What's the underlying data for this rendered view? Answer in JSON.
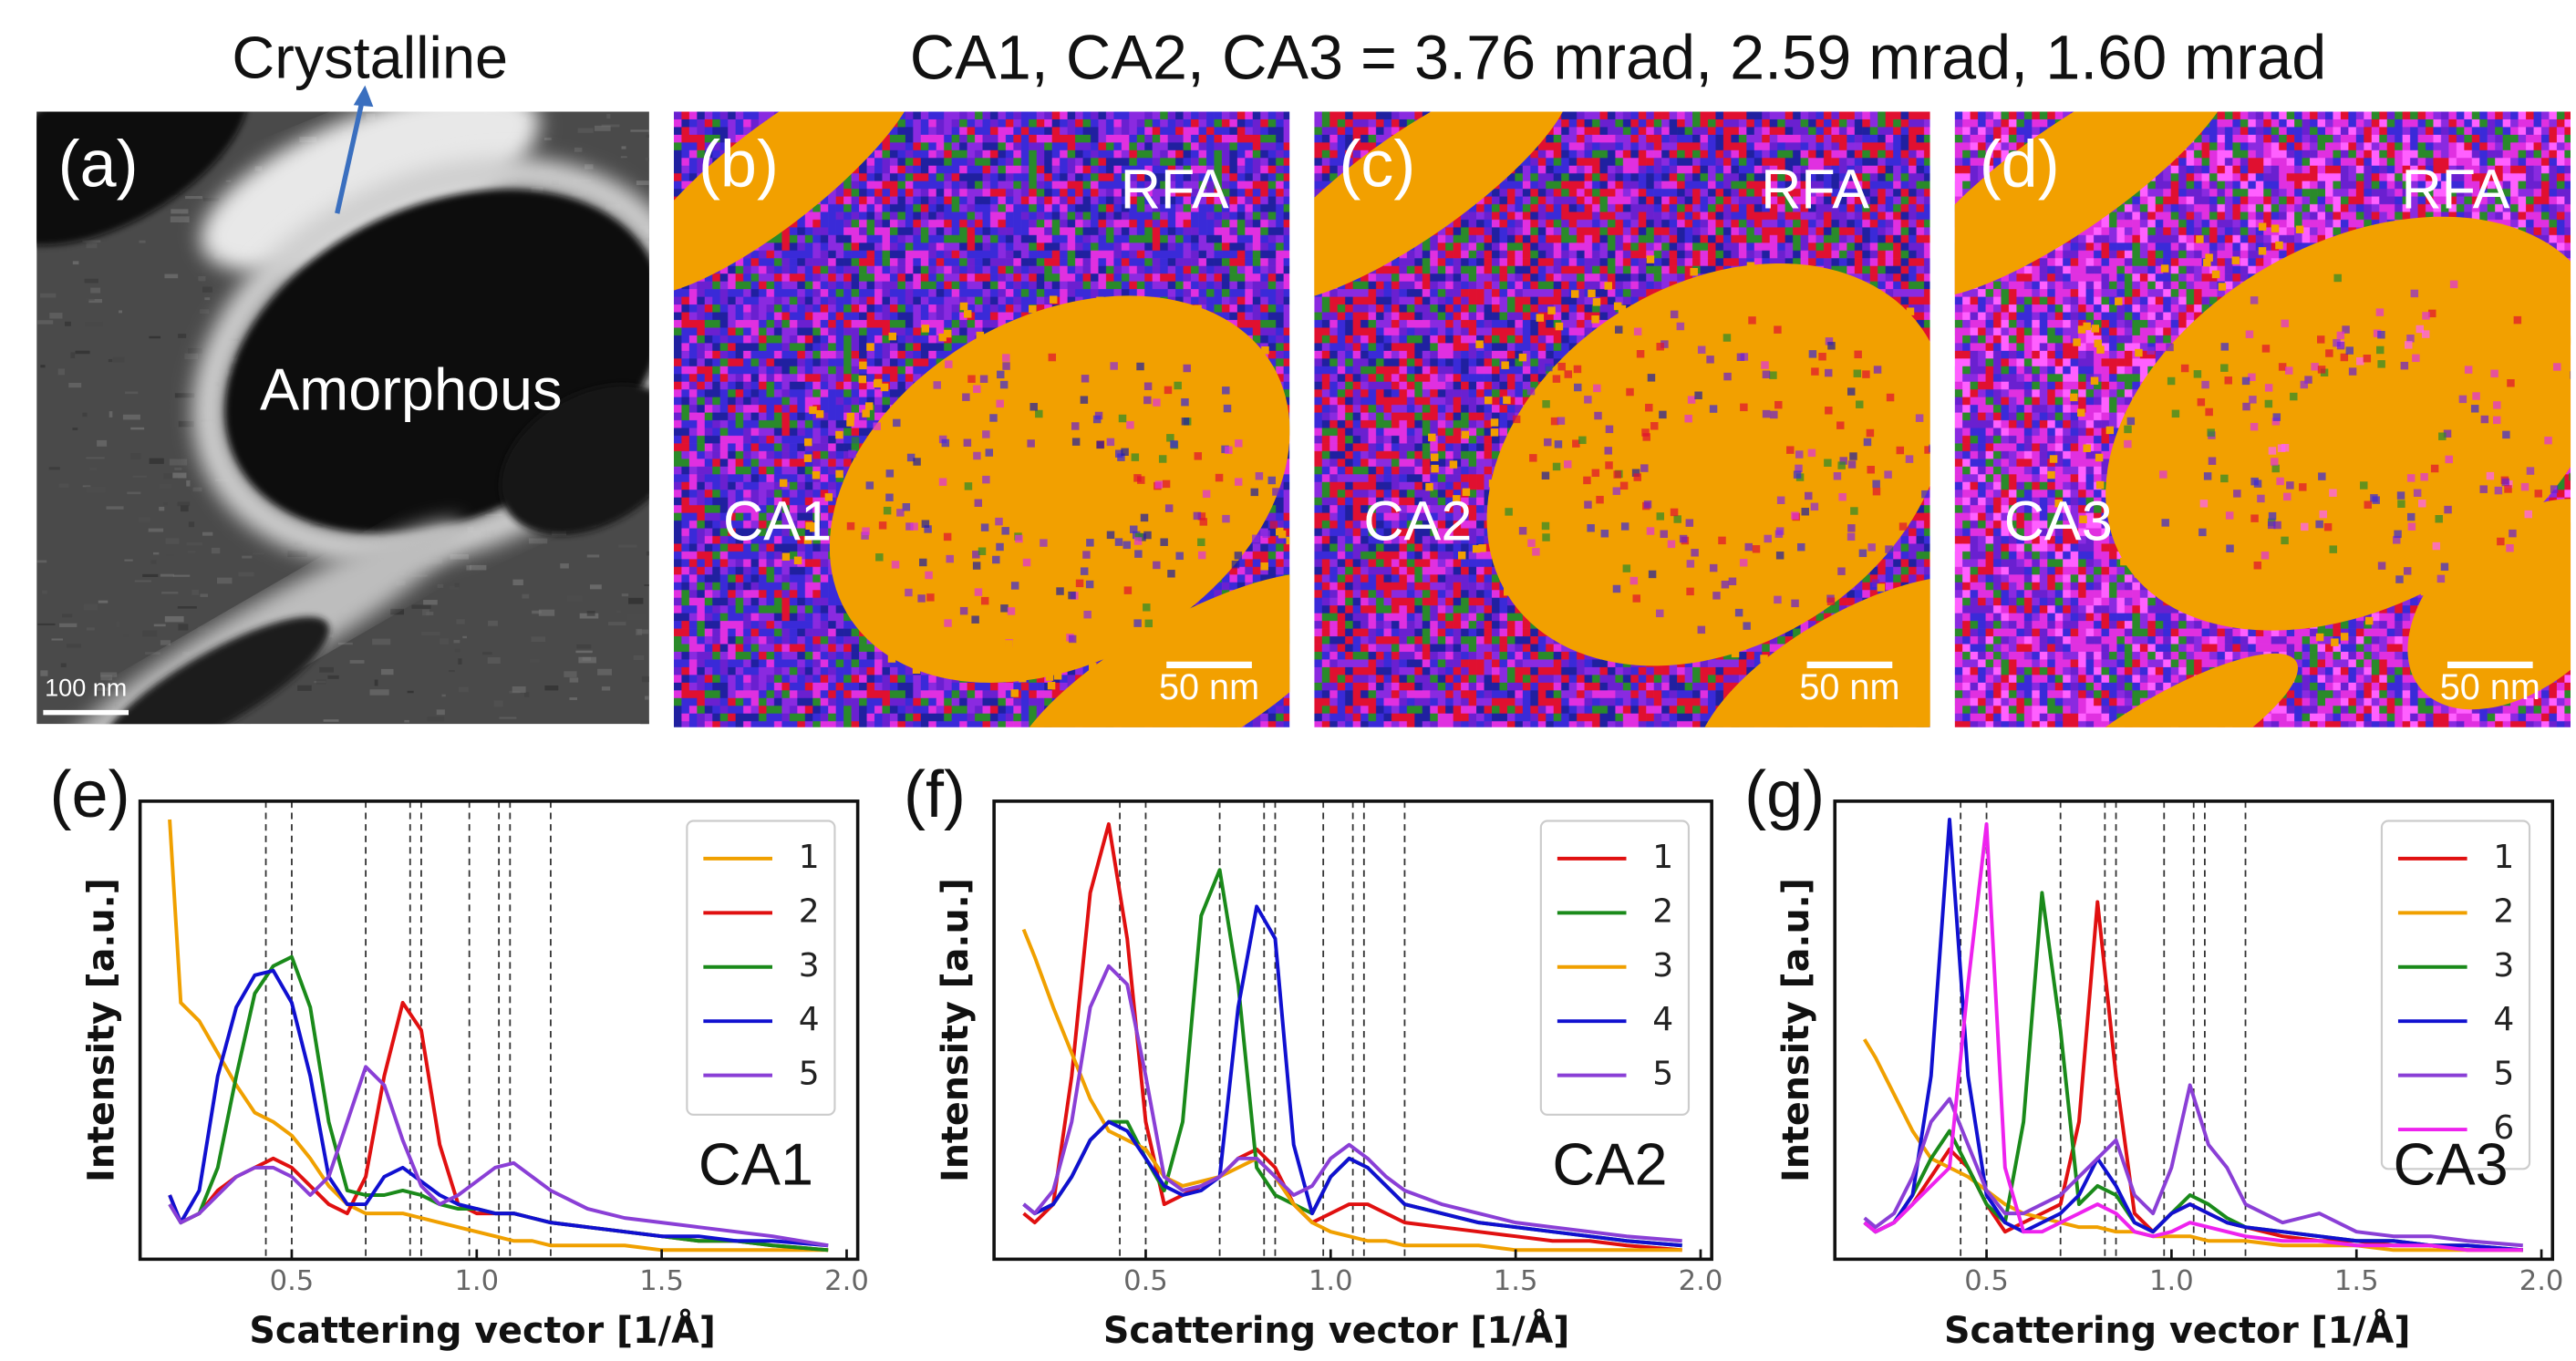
{
  "header": {
    "title": "CA1, CA2, CA3 = 3.76 mrad, 2.59 mrad, 1.60 mrad"
  },
  "panels": [
    {
      "label": "(a)",
      "callout": "Crystalline",
      "annotation": "Amorphous",
      "scale_bar": "100 nm"
    },
    {
      "label": "(b)",
      "corner_label": "RFA",
      "map_label": "CA1",
      "scale_bar": "50 nm"
    },
    {
      "label": "(c)",
      "corner_label": "RFA",
      "map_label": "CA2",
      "scale_bar": "50 nm"
    },
    {
      "label": "(d)",
      "corner_label": "RFA",
      "map_label": "CA3",
      "scale_bar": "50 nm"
    }
  ],
  "chart_data": [
    {
      "type": "line",
      "panel_label": "(e)",
      "annotation": "CA1",
      "x_label": "Scattering vector [1/Å]",
      "y_label": "Intensity [a.u.]",
      "xlim": [
        0.09,
        2.03
      ],
      "ylim": [
        0,
        1
      ],
      "xticks": [
        0.5,
        {
          "value": 1,
          "label": "1.0"
        },
        1.5,
        {
          "value": 2,
          "label": "2.0"
        }
      ],
      "reference_lines": [
        0.43,
        0.5,
        0.7,
        0.82,
        0.85,
        0.98,
        1.06,
        1.09,
        1.2
      ],
      "legend": "upper right",
      "x": [
        0.17,
        0.2,
        0.25,
        0.3,
        0.35,
        0.4,
        0.45,
        0.5,
        0.55,
        0.6,
        0.65,
        0.7,
        0.75,
        0.8,
        0.85,
        0.9,
        0.95,
        1.0,
        1.05,
        1.1,
        1.15,
        1.2,
        1.3,
        1.4,
        1.5,
        1.6,
        1.7,
        1.8,
        1.95
      ],
      "series": [
        {
          "name": "1",
          "color": "#f0a000",
          "values": [
            0.96,
            0.56,
            0.52,
            0.45,
            0.38,
            0.32,
            0.3,
            0.27,
            0.22,
            0.16,
            0.12,
            0.1,
            0.1,
            0.1,
            0.09,
            0.08,
            0.07,
            0.06,
            0.05,
            0.04,
            0.04,
            0.03,
            0.03,
            0.03,
            0.02,
            0.02,
            0.02,
            0.02,
            0.02
          ]
        },
        {
          "name": "2",
          "color": "#e01010",
          "values": [
            0.14,
            0.08,
            0.1,
            0.15,
            0.18,
            0.2,
            0.22,
            0.2,
            0.16,
            0.12,
            0.1,
            0.18,
            0.4,
            0.56,
            0.5,
            0.25,
            0.12,
            0.1,
            0.1,
            0.1,
            0.09,
            0.08,
            0.07,
            0.06,
            0.05,
            0.04,
            0.04,
            0.03,
            0.02
          ]
        },
        {
          "name": "3",
          "color": "#1a8a1a",
          "values": [
            0.12,
            0.08,
            0.1,
            0.2,
            0.4,
            0.58,
            0.64,
            0.66,
            0.55,
            0.3,
            0.15,
            0.14,
            0.14,
            0.15,
            0.14,
            0.12,
            0.11,
            0.11,
            0.1,
            0.1,
            0.09,
            0.08,
            0.07,
            0.06,
            0.05,
            0.04,
            0.04,
            0.03,
            0.02
          ]
        },
        {
          "name": "4",
          "color": "#1010d0",
          "values": [
            0.14,
            0.08,
            0.15,
            0.4,
            0.55,
            0.62,
            0.63,
            0.56,
            0.4,
            0.18,
            0.12,
            0.12,
            0.18,
            0.2,
            0.17,
            0.14,
            0.12,
            0.11,
            0.1,
            0.1,
            0.09,
            0.08,
            0.07,
            0.06,
            0.05,
            0.05,
            0.04,
            0.04,
            0.03
          ]
        },
        {
          "name": "5",
          "color": "#8a3fd6",
          "values": [
            0.12,
            0.08,
            0.1,
            0.14,
            0.18,
            0.2,
            0.2,
            0.18,
            0.14,
            0.18,
            0.3,
            0.42,
            0.38,
            0.26,
            0.16,
            0.12,
            0.14,
            0.17,
            0.2,
            0.21,
            0.18,
            0.15,
            0.11,
            0.09,
            0.08,
            0.07,
            0.06,
            0.05,
            0.03
          ]
        }
      ]
    },
    {
      "type": "line",
      "panel_label": "(f)",
      "annotation": "CA2",
      "x_label": "Scattering vector [1/Å]",
      "y_label": "Intensity [a.u.]",
      "xlim": [
        0.09,
        2.03
      ],
      "ylim": [
        0,
        1
      ],
      "xticks": [
        0.5,
        {
          "value": 1,
          "label": "1.0"
        },
        1.5,
        {
          "value": 2,
          "label": "2.0"
        }
      ],
      "reference_lines": [
        0.43,
        0.5,
        0.7,
        0.82,
        0.85,
        0.98,
        1.06,
        1.09,
        1.2
      ],
      "legend": "upper right",
      "x": [
        0.17,
        0.2,
        0.25,
        0.3,
        0.35,
        0.4,
        0.45,
        0.5,
        0.55,
        0.6,
        0.65,
        0.7,
        0.75,
        0.8,
        0.85,
        0.9,
        0.95,
        1.0,
        1.05,
        1.1,
        1.15,
        1.2,
        1.3,
        1.4,
        1.5,
        1.6,
        1.7,
        1.8,
        1.95
      ],
      "series": [
        {
          "name": "1",
          "color": "#e01010",
          "values": [
            0.1,
            0.08,
            0.12,
            0.4,
            0.8,
            0.95,
            0.7,
            0.3,
            0.12,
            0.14,
            0.16,
            0.18,
            0.22,
            0.24,
            0.2,
            0.12,
            0.08,
            0.1,
            0.12,
            0.12,
            0.1,
            0.08,
            0.07,
            0.06,
            0.05,
            0.04,
            0.04,
            0.03,
            0.02
          ]
        },
        {
          "name": "2",
          "color": "#1a8a1a",
          "values": [
            0.12,
            0.1,
            0.12,
            0.18,
            0.26,
            0.3,
            0.3,
            0.22,
            0.15,
            0.3,
            0.75,
            0.85,
            0.6,
            0.2,
            0.14,
            0.12,
            0.1,
            0.18,
            0.22,
            0.2,
            0.16,
            0.12,
            0.1,
            0.08,
            0.07,
            0.06,
            0.05,
            0.04,
            0.03
          ]
        },
        {
          "name": "3",
          "color": "#f0a000",
          "values": [
            0.72,
            0.66,
            0.55,
            0.45,
            0.35,
            0.28,
            0.26,
            0.24,
            0.18,
            0.16,
            0.17,
            0.18,
            0.2,
            0.22,
            0.18,
            0.12,
            0.08,
            0.06,
            0.05,
            0.04,
            0.04,
            0.03,
            0.03,
            0.03,
            0.02,
            0.02,
            0.02,
            0.02,
            0.02
          ]
        },
        {
          "name": "4",
          "color": "#1010d0",
          "values": [
            0.12,
            0.1,
            0.12,
            0.18,
            0.26,
            0.3,
            0.28,
            0.22,
            0.16,
            0.14,
            0.15,
            0.18,
            0.55,
            0.77,
            0.7,
            0.25,
            0.1,
            0.18,
            0.22,
            0.2,
            0.16,
            0.12,
            0.1,
            0.08,
            0.07,
            0.06,
            0.05,
            0.04,
            0.03
          ]
        },
        {
          "name": "5",
          "color": "#8a3fd6",
          "values": [
            0.12,
            0.1,
            0.15,
            0.3,
            0.55,
            0.64,
            0.6,
            0.4,
            0.18,
            0.15,
            0.16,
            0.18,
            0.22,
            0.22,
            0.18,
            0.14,
            0.16,
            0.22,
            0.25,
            0.22,
            0.18,
            0.15,
            0.12,
            0.1,
            0.08,
            0.07,
            0.06,
            0.05,
            0.04
          ]
        }
      ]
    },
    {
      "type": "line",
      "panel_label": "(g)",
      "annotation": "CA3",
      "x_label": "Scattering vector [1/Å]",
      "y_label": "Intensity [a.u.]",
      "xlim": [
        0.09,
        2.03
      ],
      "ylim": [
        0,
        1
      ],
      "xticks": [
        0.5,
        {
          "value": 1,
          "label": "1.0"
        },
        1.5,
        {
          "value": 2,
          "label": "2.0"
        }
      ],
      "reference_lines": [
        0.43,
        0.5,
        0.7,
        0.82,
        0.85,
        0.98,
        1.06,
        1.09,
        1.2
      ],
      "legend": "upper right",
      "x": [
        0.17,
        0.2,
        0.25,
        0.3,
        0.35,
        0.4,
        0.45,
        0.5,
        0.55,
        0.6,
        0.65,
        0.7,
        0.75,
        0.8,
        0.85,
        0.9,
        0.95,
        1.0,
        1.05,
        1.1,
        1.15,
        1.2,
        1.3,
        1.4,
        1.5,
        1.6,
        1.7,
        1.8,
        1.95
      ],
      "series": [
        {
          "name": "1",
          "color": "#e01010",
          "values": [
            0.08,
            0.06,
            0.08,
            0.12,
            0.18,
            0.24,
            0.2,
            0.12,
            0.06,
            0.08,
            0.1,
            0.12,
            0.3,
            0.78,
            0.4,
            0.1,
            0.06,
            0.1,
            0.12,
            0.1,
            0.08,
            0.07,
            0.05,
            0.04,
            0.04,
            0.03,
            0.03,
            0.02,
            0.02
          ]
        },
        {
          "name": "2",
          "color": "#f0a000",
          "values": [
            0.48,
            0.44,
            0.36,
            0.28,
            0.22,
            0.2,
            0.18,
            0.15,
            0.12,
            0.1,
            0.09,
            0.08,
            0.07,
            0.07,
            0.06,
            0.06,
            0.05,
            0.05,
            0.05,
            0.04,
            0.04,
            0.04,
            0.03,
            0.03,
            0.03,
            0.02,
            0.02,
            0.02,
            0.02
          ]
        },
        {
          "name": "3",
          "color": "#1a8a1a",
          "values": [
            0.08,
            0.06,
            0.08,
            0.14,
            0.22,
            0.28,
            0.2,
            0.12,
            0.08,
            0.3,
            0.8,
            0.5,
            0.12,
            0.16,
            0.14,
            0.08,
            0.06,
            0.1,
            0.14,
            0.12,
            0.09,
            0.07,
            0.06,
            0.05,
            0.04,
            0.04,
            0.03,
            0.03,
            0.02
          ]
        },
        {
          "name": "4",
          "color": "#1010d0",
          "values": [
            0.08,
            0.06,
            0.08,
            0.14,
            0.4,
            0.96,
            0.4,
            0.14,
            0.08,
            0.06,
            0.08,
            0.1,
            0.14,
            0.22,
            0.16,
            0.08,
            0.06,
            0.1,
            0.12,
            0.1,
            0.08,
            0.07,
            0.06,
            0.05,
            0.04,
            0.04,
            0.03,
            0.03,
            0.02
          ]
        },
        {
          "name": "5",
          "color": "#8a3fd6",
          "values": [
            0.09,
            0.07,
            0.1,
            0.18,
            0.3,
            0.35,
            0.25,
            0.15,
            0.1,
            0.1,
            0.12,
            0.14,
            0.18,
            0.22,
            0.26,
            0.14,
            0.1,
            0.2,
            0.38,
            0.25,
            0.2,
            0.12,
            0.08,
            0.1,
            0.06,
            0.05,
            0.05,
            0.04,
            0.03
          ]
        },
        {
          "name": "6",
          "color": "#ee22ee",
          "values": [
            0.08,
            0.06,
            0.08,
            0.12,
            0.16,
            0.2,
            0.6,
            0.95,
            0.2,
            0.06,
            0.06,
            0.08,
            0.1,
            0.12,
            0.1,
            0.06,
            0.05,
            0.06,
            0.08,
            0.07,
            0.06,
            0.05,
            0.04,
            0.04,
            0.03,
            0.03,
            0.03,
            0.02,
            0.02
          ]
        }
      ]
    }
  ]
}
